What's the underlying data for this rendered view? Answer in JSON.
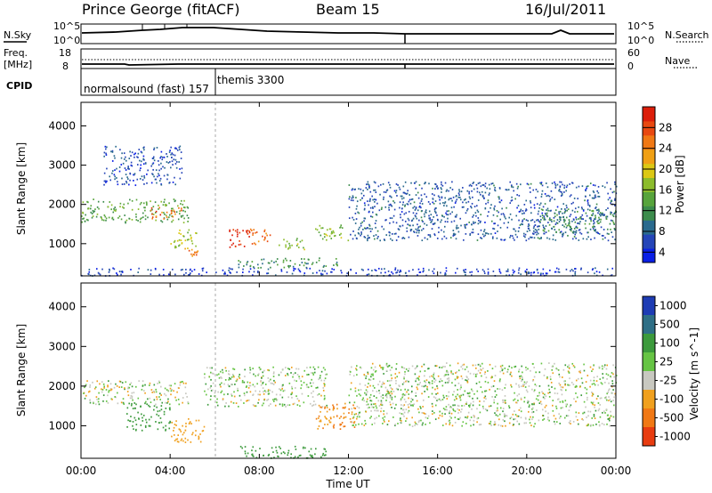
{
  "header": {
    "station": "Prince George (fitACF)",
    "beam": "Beam 15",
    "date": "16/Jul/2011"
  },
  "strip_labels": {
    "nsky": "N.Sky",
    "nsearch": "N.Search",
    "freq_line1": "Freq.",
    "freq_line2": "[MHz]",
    "nave": "Nave",
    "cpid": "CPID",
    "noise_top": "10^5",
    "noise_bot": "10^0",
    "freq_top": "18",
    "freq_bot": "8",
    "nave_top": "60",
    "nave_bot": "0"
  },
  "cpid_labels": {
    "first": "normalsound (fast) 157",
    "second": "themis 3300"
  },
  "axes": {
    "x_ticks": [
      "00:00",
      "04:00",
      "08:00",
      "12:00",
      "16:00",
      "20:00",
      "00:00"
    ],
    "xlabel": "Time UT",
    "ylabel_power": "Slant Range [km]",
    "ylabel_velocity": "Slant Range [km]",
    "y_ticks": [
      "1000",
      "2000",
      "3000",
      "4000"
    ]
  },
  "colorbars": {
    "power": {
      "label": "Power [dB]",
      "ticks": [
        "4",
        "8",
        "12",
        "16",
        "20",
        "24",
        "28"
      ],
      "colors": [
        "#0a1fe6",
        "#2545b8",
        "#2a6a8e",
        "#3c8c4c",
        "#57a43c",
        "#8cbc2c",
        "#dcc814",
        "#f0a014",
        "#f07814",
        "#e84810",
        "#dc1e0a"
      ]
    },
    "velocity": {
      "label": "Velocity [m s^-1]",
      "ticks": [
        "1000",
        "500",
        "100",
        "25",
        "-25",
        "-100",
        "-500",
        "-1000"
      ],
      "colors": [
        "#1e3cb4",
        "#2f6f86",
        "#3c9a3c",
        "#66c444",
        "#c8c8c0",
        "#f0a01e",
        "#f07814",
        "#e83c10"
      ]
    }
  },
  "chart_data": [
    {
      "type": "heatmap",
      "name": "power",
      "xlabel": "Time UT",
      "ylabel": "Slant Range [km]",
      "xlim": [
        0,
        24
      ],
      "ylim": [
        180,
        4600
      ],
      "colorbar_label": "Power [dB]",
      "colorbar_ticks": [
        4,
        8,
        12,
        16,
        20,
        24,
        28
      ],
      "regions": [
        {
          "t": [
            0.0,
            4.8
          ],
          "r": [
            1550,
            2150
          ],
          "level": 12
        },
        {
          "t": [
            3.1,
            4.6
          ],
          "r": [
            1650,
            1950
          ],
          "level": 24
        },
        {
          "t": [
            4.0,
            5.2
          ],
          "r": [
            900,
            1400
          ],
          "level": 16
        },
        {
          "t": [
            4.6,
            5.5
          ],
          "r": [
            700,
            950
          ],
          "level": 22
        },
        {
          "t": [
            6.6,
            7.6
          ],
          "r": [
            900,
            1400
          ],
          "level": 28
        },
        {
          "t": [
            7.5,
            8.5
          ],
          "r": [
            1000,
            1400
          ],
          "level": 24
        },
        {
          "t": [
            8.8,
            10.0
          ],
          "r": [
            850,
            1150
          ],
          "level": 14
        },
        {
          "t": [
            7.0,
            11.5
          ],
          "r": [
            400,
            650
          ],
          "level": 10
        },
        {
          "t": [
            10.5,
            12.0
          ],
          "r": [
            1100,
            1500
          ],
          "level": 14
        },
        {
          "t": [
            1.0,
            4.5
          ],
          "r": [
            2500,
            3500
          ],
          "level": 5
        },
        {
          "t": [
            12.0,
            24.0
          ],
          "r": [
            1100,
            2600
          ],
          "level": 6
        },
        {
          "t": [
            20.5,
            24.0
          ],
          "r": [
            1300,
            1900
          ],
          "level": 10
        },
        {
          "t": [
            0.0,
            24.0
          ],
          "r": [
            200,
            400
          ],
          "level": 4
        }
      ]
    },
    {
      "type": "heatmap",
      "name": "velocity",
      "xlabel": "Time UT",
      "ylabel": "Slant Range [km]",
      "xlim": [
        0,
        24
      ],
      "ylim": [
        180,
        4600
      ],
      "colorbar_label": "Velocity [m s^-1]",
      "colorbar_ticks": [
        1000,
        500,
        100,
        25,
        -25,
        -100,
        -500,
        -1000
      ],
      "regions": [
        {
          "t": [
            0.0,
            4.8
          ],
          "r": [
            1550,
            2150
          ],
          "v": 0
        },
        {
          "t": [
            2.0,
            4.0
          ],
          "r": [
            900,
            1600
          ],
          "v": 200
        },
        {
          "t": [
            4.0,
            5.5
          ],
          "r": [
            600,
            1200
          ],
          "v": -200
        },
        {
          "t": [
            7.0,
            11.0
          ],
          "r": [
            200,
            500
          ],
          "v": 150
        },
        {
          "t": [
            10.5,
            12.3
          ],
          "r": [
            900,
            1600
          ],
          "v": -300
        },
        {
          "t": [
            12.0,
            24.0
          ],
          "r": [
            1000,
            2600
          ],
          "v": 0
        },
        {
          "t": [
            5.5,
            11.0
          ],
          "r": [
            1500,
            2500
          ],
          "v": 0
        }
      ]
    }
  ]
}
